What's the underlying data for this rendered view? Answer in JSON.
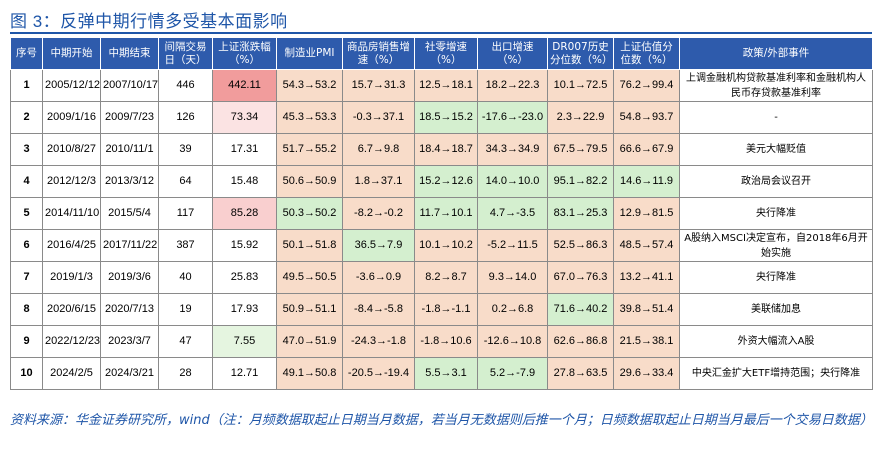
{
  "title": "图 3：反弹中期行情多受基本面影响",
  "headers": [
    "序号",
    "中期开始",
    "中期结束",
    "间隔交易日（天）",
    "上证涨跌幅（%）",
    "制造业PMI",
    "商品房销售增速（%）",
    "社零增速（%）",
    "出口增速（%）",
    "DR007历史分位数（%）",
    "上证估值分位数（%）",
    "政策/外部事件"
  ],
  "rows": [
    {
      "idx": "1",
      "start": "2005/12/12",
      "end": "2007/10/17",
      "days": "446",
      "chg": "442.11",
      "pmi": "54.3→53.2",
      "house": "15.7→31.3",
      "retail": "12.5→18.1",
      "export": "18.2→22.3",
      "dr007": "10.1→72.5",
      "val": "76.2→99.4",
      "event": "上调金融机构贷款基准利率和金融机构人民币存贷款基准利率"
    },
    {
      "idx": "2",
      "start": "2009/1/16",
      "end": "2009/7/23",
      "days": "126",
      "chg": "73.34",
      "pmi": "45.3→53.3",
      "house": "-0.3→37.1",
      "retail": "18.5→15.2",
      "export": "-17.6→-23.0",
      "dr007": "2.3→22.9",
      "val": "54.8→93.7",
      "event": "-"
    },
    {
      "idx": "3",
      "start": "2010/8/27",
      "end": "2010/11/1",
      "days": "39",
      "chg": "17.31",
      "pmi": "51.7→55.2",
      "house": "6.7→9.8",
      "retail": "18.4→18.7",
      "export": "34.3→34.9",
      "dr007": "67.5→79.5",
      "val": "66.6→67.9",
      "event": "美元大幅贬值"
    },
    {
      "idx": "4",
      "start": "2012/12/3",
      "end": "2013/3/12",
      "days": "64",
      "chg": "15.48",
      "pmi": "50.6→50.9",
      "house": "1.8→37.1",
      "retail": "15.2→12.6",
      "export": "14.0→10.0",
      "dr007": "95.1→82.2",
      "val": "14.6→11.9",
      "event": "政治局会议召开"
    },
    {
      "idx": "5",
      "start": "2014/11/10",
      "end": "2015/5/4",
      "days": "117",
      "chg": "85.28",
      "pmi": "50.3→50.2",
      "house": "-8.2→-0.2",
      "retail": "11.7→10.1",
      "export": "4.7→-3.5",
      "dr007": "83.1→25.3",
      "val": "12.9→81.5",
      "event": "央行降准"
    },
    {
      "idx": "6",
      "start": "2016/4/25",
      "end": "2017/11/22",
      "days": "387",
      "chg": "15.92",
      "pmi": "50.1→51.8",
      "house": "36.5→7.9",
      "retail": "10.1→10.2",
      "export": "-5.2→11.5",
      "dr007": "52.5→86.3",
      "val": "48.5→57.4",
      "event": "A股纳入MSCI决定宣布，自2018年6月开始实施"
    },
    {
      "idx": "7",
      "start": "2019/1/3",
      "end": "2019/3/6",
      "days": "40",
      "chg": "25.83",
      "pmi": "49.5→50.5",
      "house": "-3.6→0.9",
      "retail": "8.2→8.7",
      "export": "9.3→14.0",
      "dr007": "67.0→76.3",
      "val": "13.2→41.1",
      "event": "央行降准"
    },
    {
      "idx": "8",
      "start": "2020/6/15",
      "end": "2020/7/13",
      "days": "19",
      "chg": "17.93",
      "pmi": "50.9→51.1",
      "house": "-8.4→-5.8",
      "retail": "-1.8→-1.1",
      "export": "0.2→6.8",
      "dr007": "71.6→40.2",
      "val": "39.8→51.4",
      "event": "美联储加息"
    },
    {
      "idx": "9",
      "start": "2022/12/23",
      "end": "2023/3/7",
      "days": "47",
      "chg": "7.55",
      "pmi": "47.0→51.9",
      "house": "-24.3→-1.8",
      "retail": "-1.8→10.6",
      "export": "-12.6→10.8",
      "dr007": "62.6→86.8",
      "val": "21.5→38.1",
      "event": "外资大幅流入A股"
    },
    {
      "idx": "10",
      "start": "2024/2/5",
      "end": "2024/3/21",
      "days": "28",
      "chg": "12.71",
      "pmi": "49.1→50.8",
      "house": "-20.5→-19.4",
      "retail": "5.5→3.1",
      "export": "5.2→-7.9",
      "dr007": "27.8→63.5",
      "val": "29.6→33.4",
      "event": "中央汇金扩大ETF增持范围；央行降准"
    }
  ],
  "source": "资料来源：华金证券研究所，wind（注：月频数据取起止日期当月数据，若当月无数据则后推一个月；日频数据取起止日期当月最后一个交易日数据）"
}
